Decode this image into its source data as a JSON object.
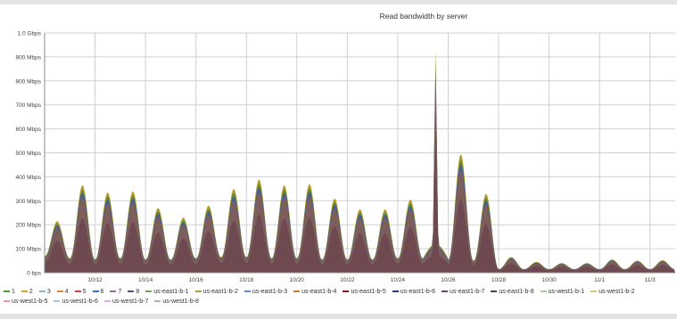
{
  "chart_data": {
    "type": "area",
    "title": "Read bandwidth by server",
    "ylim": [
      0,
      1000
    ],
    "y_unit": "Mbps",
    "y_ticks": [
      {
        "value": 0,
        "label": "0 bps"
      },
      {
        "value": 100,
        "label": "100 Mbps"
      },
      {
        "value": 200,
        "label": "200 Mbps"
      },
      {
        "value": 300,
        "label": "300 Mbps"
      },
      {
        "value": 400,
        "label": "400 Mbps"
      },
      {
        "value": 500,
        "label": "500 Mbps"
      },
      {
        "value": 600,
        "label": "600 Mbps"
      },
      {
        "value": 700,
        "label": "700 Mbps"
      },
      {
        "value": 800,
        "label": "800 Mbps"
      },
      {
        "value": 900,
        "label": "900 Mbps"
      },
      {
        "value": 1000,
        "label": "1.0 Gbps"
      }
    ],
    "x_range": [
      "10/10",
      "11/4"
    ],
    "x_ticks": [
      "10/12",
      "10/14",
      "10/16",
      "10/18",
      "10/20",
      "10/22",
      "10/24",
      "10/26",
      "10/28",
      "10/30",
      "11/1",
      "11/3"
    ],
    "grid": true,
    "legend_position": "bottom",
    "x": [
      "10/10 12:00",
      "10/11 12:00",
      "10/12 12:00",
      "10/13 12:00",
      "10/14 12:00",
      "10/15 12:00",
      "10/16 12:00",
      "10/17 12:00",
      "10/18 12:00",
      "10/19 12:00",
      "10/20 12:00",
      "10/21 12:00",
      "10/22 12:00",
      "10/23 12:00",
      "10/24 12:00",
      "10/25 12:00",
      "10/26 12:00",
      "10/27 12:00",
      "10/28 12:00",
      "10/29 12:00",
      "10/30 12:00",
      "10/31 12:00",
      "11/1 12:00",
      "11/2 12:00",
      "11/3 12:00"
    ],
    "total_daily_peak": [
      215,
      365,
      335,
      340,
      270,
      230,
      280,
      350,
      390,
      365,
      370,
      310,
      265,
      265,
      305,
      930,
      495,
      330,
      65,
      45,
      40,
      40,
      55,
      50,
      52
    ],
    "total_daily_trough": [
      70,
      60,
      55,
      60,
      55,
      55,
      60,
      65,
      65,
      60,
      60,
      55,
      55,
      55,
      60,
      60,
      55,
      50,
      15,
      15,
      15,
      15,
      15,
      15,
      15
    ],
    "series": [
      {
        "name": "1",
        "color": "#4e9a3a"
      },
      {
        "name": "2",
        "color": "#c9a227"
      },
      {
        "name": "3",
        "color": "#7fb8d8"
      },
      {
        "name": "4",
        "color": "#d98a3a"
      },
      {
        "name": "5",
        "color": "#c8454a"
      },
      {
        "name": "6",
        "color": "#3c6fb4"
      },
      {
        "name": "7",
        "color": "#9b6bb5"
      },
      {
        "name": "8",
        "color": "#5a4a8a"
      },
      {
        "name": "us-east1-b-1",
        "color": "#6aa84f"
      },
      {
        "name": "us-east1-b-2",
        "color": "#b8a02a"
      },
      {
        "name": "us-east1-b-3",
        "color": "#5d8fbf"
      },
      {
        "name": "us-east1-b-4",
        "color": "#c97a2c"
      },
      {
        "name": "us-east1-b-5",
        "color": "#8b1a1a"
      },
      {
        "name": "us-east1-b-6",
        "color": "#1f3f7a"
      },
      {
        "name": "us-east1-b-7",
        "color": "#7a3b7a"
      },
      {
        "name": "us-east1-b-8",
        "color": "#444466"
      },
      {
        "name": "us-west1-b-1",
        "color": "#a4c99a"
      },
      {
        "name": "us-west1-b-2",
        "color": "#d8c77a"
      },
      {
        "name": "us-west1-b-5",
        "color": "#e59aa0"
      },
      {
        "name": "us-west1-b-6",
        "color": "#9fc4e0"
      },
      {
        "name": "us-west1-b-7",
        "color": "#e2a8e0"
      },
      {
        "name": "us-west1-b-8",
        "color": "#b0b0c8"
      }
    ],
    "colors": {
      "fill": "#6e4a50",
      "fill_upper": "#7d5e5c",
      "top_band": "#b89a2a",
      "green_band": "#5d8a3a",
      "blue_band": "#4a5a9a",
      "grid": "#d0d0d0",
      "axis": "#888888"
    }
  }
}
